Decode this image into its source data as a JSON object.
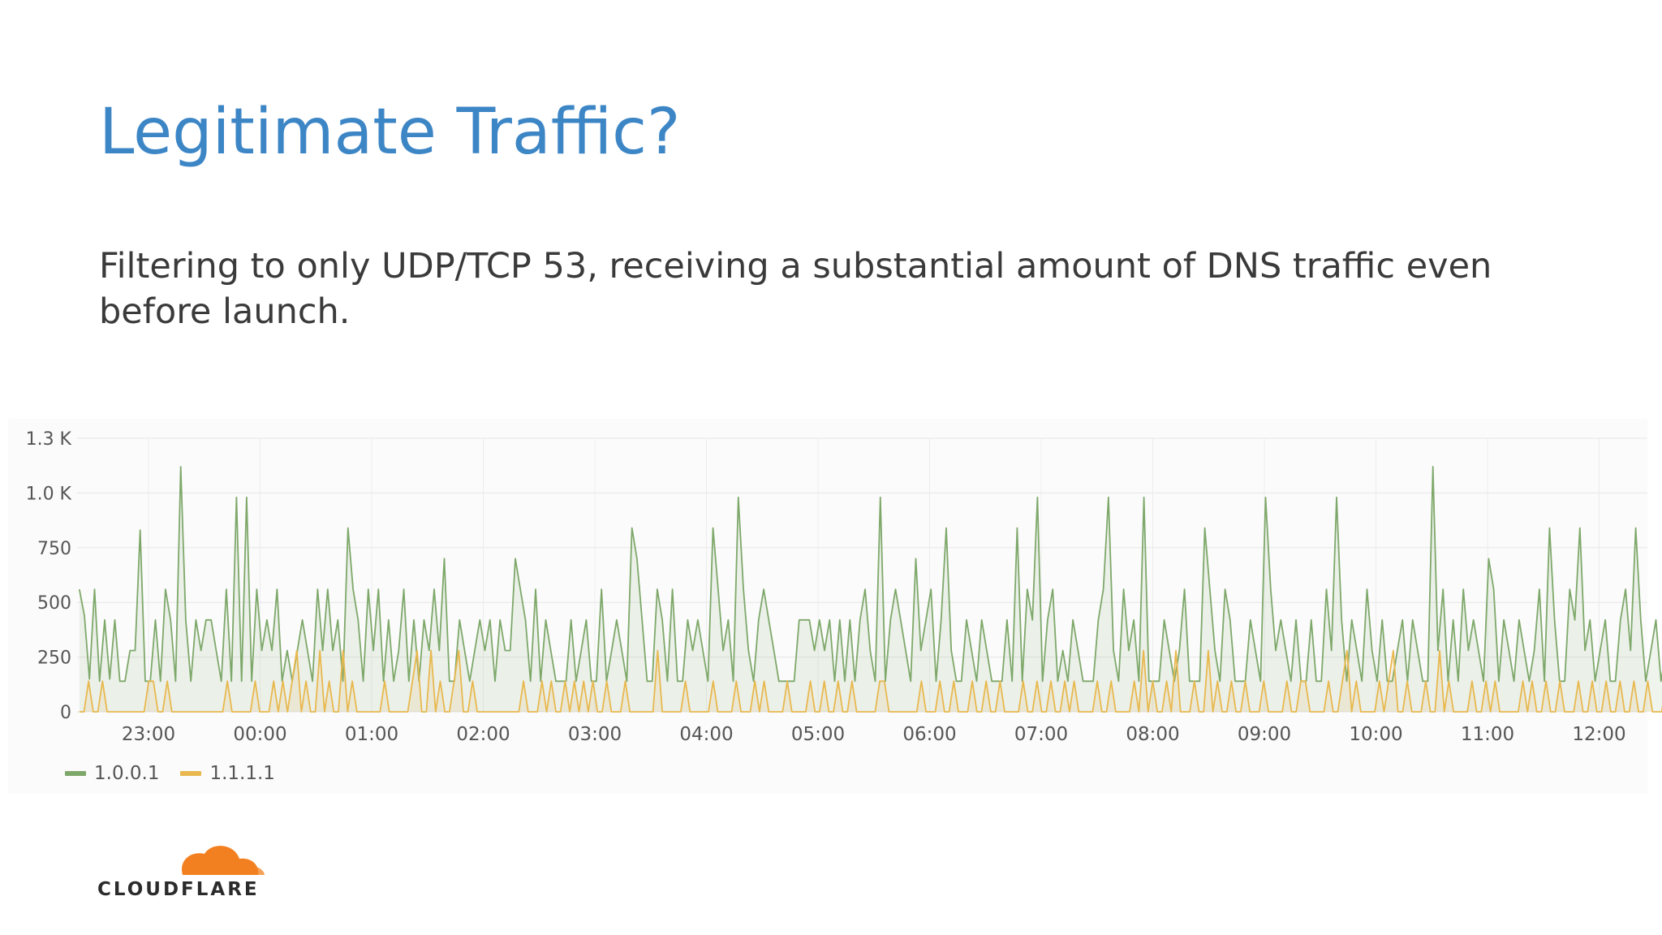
{
  "slide": {
    "title": "Legitimate Traffic?",
    "body": "Filtering to only UDP/TCP 53, receiving a substantial amount of DNS traffic even before launch.",
    "logo_text": "CLOUDFLARE",
    "logo_icon": "cloud-icon",
    "logo_color": "#f38020"
  },
  "chart_data": {
    "type": "line",
    "title": "",
    "xlabel": "",
    "ylabel": "",
    "x_ticks": [
      "23:00",
      "00:00",
      "01:00",
      "02:00",
      "03:00",
      "04:00",
      "05:00",
      "06:00",
      "07:00",
      "08:00",
      "09:00",
      "10:00",
      "11:00",
      "12:00"
    ],
    "y_ticks": [
      "0",
      "250",
      "500",
      "750",
      "1.0 K",
      "1.3 K"
    ],
    "ylim": [
      0,
      1250
    ],
    "x_range_hours": [
      -0.62,
      14.1
    ],
    "grid": true,
    "legend_position": "bottom-left",
    "series": [
      {
        "name": "1.0.0.1",
        "color": "#7ea86a",
        "fill": "rgba(126,168,106,0.12)",
        "values": [
          560,
          440,
          150,
          560,
          140,
          420,
          150,
          420,
          140,
          140,
          280,
          280,
          830,
          140,
          140,
          420,
          140,
          560,
          420,
          140,
          1120,
          420,
          140,
          420,
          280,
          420,
          420,
          280,
          140,
          560,
          140,
          980,
          140,
          980,
          140,
          560,
          280,
          420,
          280,
          560,
          140,
          280,
          140,
          280,
          420,
          280,
          140,
          560,
          280,
          560,
          280,
          420,
          140,
          840,
          560,
          420,
          140,
          560,
          280,
          560,
          140,
          420,
          140,
          280,
          560,
          140,
          420,
          140,
          420,
          280,
          560,
          280,
          700,
          140,
          140,
          420,
          280,
          140,
          280,
          420,
          280,
          420,
          140,
          420,
          280,
          280,
          700,
          560,
          420,
          140,
          560,
          140,
          420,
          280,
          140,
          140,
          140,
          420,
          140,
          280,
          420,
          140,
          140,
          560,
          140,
          280,
          420,
          280,
          140,
          840,
          700,
          420,
          140,
          140,
          560,
          420,
          140,
          560,
          140,
          140,
          420,
          280,
          420,
          280,
          140,
          840,
          560,
          280,
          420,
          140,
          980,
          560,
          280,
          140,
          420,
          560,
          420,
          280,
          140,
          140,
          140,
          140,
          420,
          420,
          420,
          280,
          420,
          280,
          420,
          140,
          420,
          140,
          420,
          140,
          420,
          560,
          280,
          140,
          980,
          140,
          420,
          560,
          420,
          280,
          140,
          700,
          280,
          420,
          560,
          140,
          420,
          840,
          280,
          140,
          140,
          420,
          280,
          140,
          420,
          280,
          140,
          140,
          140,
          420,
          140,
          840,
          140,
          560,
          420,
          980,
          140,
          420,
          560,
          140,
          280,
          140,
          420,
          280,
          140,
          140,
          140,
          420,
          560,
          980,
          280,
          140,
          560,
          280,
          420,
          140,
          980,
          140,
          140,
          140,
          420,
          280,
          140,
          280,
          560,
          140,
          140,
          140,
          840,
          560,
          280,
          140,
          560,
          420,
          140,
          140,
          140,
          420,
          280,
          140,
          980,
          560,
          280,
          420,
          280,
          140,
          420,
          140,
          140,
          420,
          140,
          140,
          560,
          280,
          980,
          420,
          140,
          420,
          280,
          140,
          560,
          280,
          140,
          420,
          140,
          140,
          280,
          420,
          140,
          420,
          280,
          140,
          140,
          1120,
          280,
          560,
          140,
          420,
          140,
          560,
          280,
          420,
          280,
          140,
          700,
          560,
          140,
          420,
          280,
          140,
          420,
          280,
          140,
          280,
          560,
          140,
          840,
          420,
          140,
          140,
          560,
          420,
          840,
          280,
          420,
          140,
          280,
          420,
          140,
          140,
          420,
          560,
          280,
          840,
          420,
          140,
          280,
          420,
          140,
          280,
          560,
          700,
          280,
          420,
          140,
          980,
          140,
          420,
          280,
          140,
          420
        ]
      },
      {
        "name": "1.1.1.1",
        "color": "#e8b84e",
        "fill": "rgba(232,184,78,0.12)",
        "values": [
          0,
          0,
          140,
          0,
          0,
          140,
          0,
          0,
          0,
          0,
          0,
          0,
          0,
          0,
          0,
          140,
          140,
          0,
          0,
          140,
          0,
          0,
          0,
          0,
          0,
          0,
          0,
          0,
          0,
          0,
          0,
          0,
          140,
          0,
          0,
          0,
          0,
          0,
          140,
          0,
          0,
          0,
          140,
          0,
          140,
          0,
          140,
          280,
          0,
          140,
          0,
          0,
          280,
          0,
          140,
          0,
          0,
          280,
          0,
          140,
          0,
          0,
          0,
          0,
          0,
          0,
          140,
          0,
          0,
          0,
          0,
          0,
          140,
          280,
          0,
          0,
          280,
          0,
          140,
          0,
          0,
          140,
          280,
          0,
          0,
          140,
          0,
          0,
          0,
          0,
          0,
          0,
          0,
          0,
          0,
          0,
          140,
          0,
          0,
          0,
          140,
          0,
          140,
          0,
          0,
          140,
          0,
          140,
          0,
          140,
          0,
          140,
          0,
          0,
          140,
          0,
          0,
          0,
          140,
          0,
          0,
          0,
          0,
          0,
          0,
          280,
          0,
          0,
          0,
          0,
          0,
          140,
          0,
          0,
          0,
          0,
          0,
          140,
          0,
          0,
          0,
          0,
          140,
          0,
          0,
          0,
          140,
          0,
          140,
          0,
          0,
          0,
          0,
          140,
          0,
          0,
          0,
          0,
          140,
          0,
          0,
          140,
          0,
          0,
          140,
          0,
          0,
          140,
          0,
          0,
          0,
          0,
          0,
          140,
          140,
          0,
          0,
          0,
          0,
          0,
          0,
          0,
          140,
          0,
          0,
          0,
          140,
          0,
          0,
          140,
          0,
          0,
          0,
          140,
          0,
          0,
          140,
          0,
          0,
          140,
          0,
          0,
          0,
          0,
          140,
          0,
          0,
          140,
          0,
          0,
          140,
          0,
          0,
          140,
          0,
          140,
          0,
          0,
          0,
          0,
          140,
          0,
          0,
          140,
          0,
          0,
          0,
          0,
          140,
          0,
          280,
          0,
          140,
          0,
          0,
          140,
          0,
          280,
          0,
          0,
          0,
          140,
          0,
          0,
          280,
          0,
          140,
          0,
          0,
          140,
          0,
          0,
          140,
          0,
          0,
          0,
          140,
          0,
          0,
          0,
          0,
          140,
          0,
          0,
          140,
          140,
          0,
          0,
          0,
          0,
          140,
          0,
          0,
          140,
          280,
          0,
          140,
          0,
          0,
          0,
          0,
          140,
          0,
          140,
          280,
          0,
          0,
          140,
          0,
          0,
          0,
          140,
          0,
          0,
          280,
          0,
          140,
          0,
          0,
          0,
          0,
          140,
          0,
          0,
          140,
          0,
          140,
          0,
          0,
          0,
          0,
          0,
          140,
          0,
          140,
          0,
          0,
          140,
          0,
          0,
          140,
          0,
          0,
          0,
          140,
          0,
          0,
          140,
          0,
          0,
          140,
          0,
          0,
          140,
          0,
          0,
          140,
          0,
          0,
          140,
          0,
          0,
          0,
          140,
          0,
          0,
          0,
          140,
          0,
          0,
          0,
          140,
          0,
          280,
          0,
          0
        ]
      }
    ]
  }
}
